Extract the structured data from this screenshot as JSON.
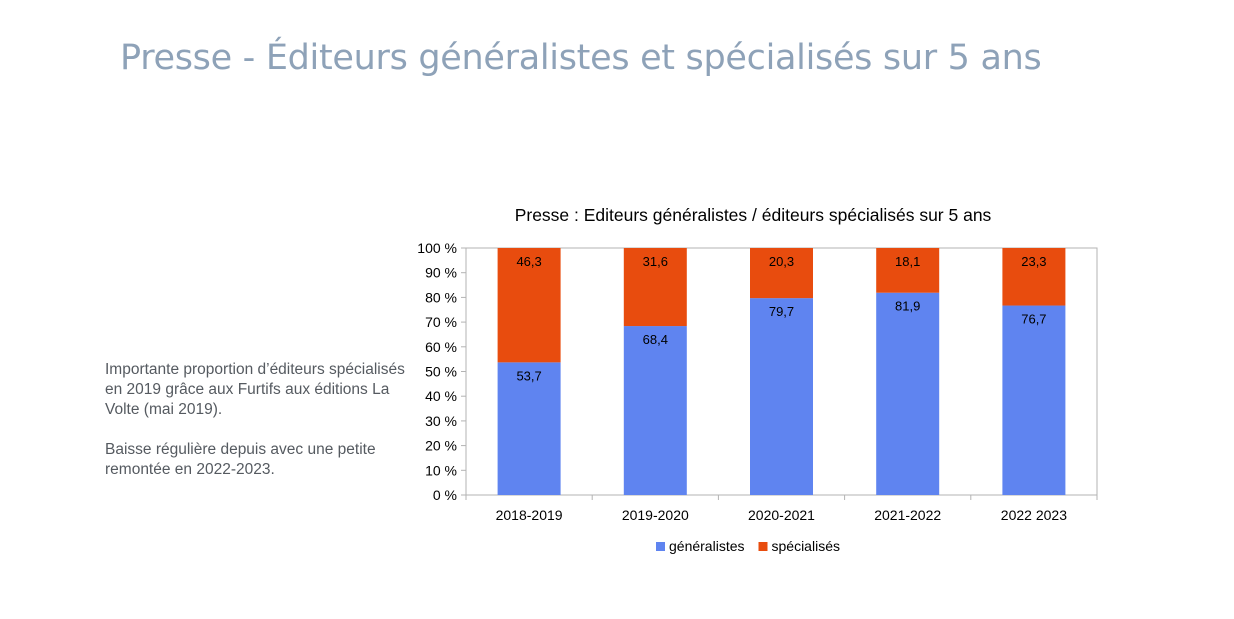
{
  "page": {
    "title": "Presse - Éditeurs généralistes et spécialisés sur 5 ans",
    "notes": [
      "Importante proportion d’éditeurs spécialisés en 2019 grâce aux Furtifs aux éditions La Volte (mai 2019).",
      "Baisse régulière depuis avec une petite remontée en 2022-2023."
    ]
  },
  "chart_data": {
    "type": "bar",
    "stacked": true,
    "title": "Presse : Editeurs généralistes / éditeurs spécialisés sur 5 ans",
    "xlabel": "",
    "ylabel": "",
    "categories": [
      "2018-2019",
      "2019-2020",
      "2020-2021",
      "2021-2022",
      "2022 2023"
    ],
    "series": [
      {
        "name": "généralistes",
        "values": [
          53.7,
          68.4,
          79.7,
          81.9,
          76.7
        ],
        "labels": [
          "53,7",
          "68,4",
          "79,7",
          "81,9",
          "76,7"
        ],
        "color": "#5f84f0"
      },
      {
        "name": "spécialisés",
        "values": [
          46.3,
          31.6,
          20.3,
          18.1,
          23.3
        ],
        "labels": [
          "46,3",
          "31,6",
          "20,3",
          "18,1",
          "23,3"
        ],
        "color": "#e84c0e"
      }
    ],
    "ylim": [
      0,
      100
    ],
    "yticks": [
      "0 %",
      "10 %",
      "20 %",
      "30 %",
      "40 %",
      "50 %",
      "60 %",
      "70 %",
      "80 %",
      "90 %",
      "100 %"
    ],
    "grid": false,
    "legend": "bottom",
    "colors": {
      "frame": "#b3b3b3",
      "text": "#000000"
    }
  }
}
